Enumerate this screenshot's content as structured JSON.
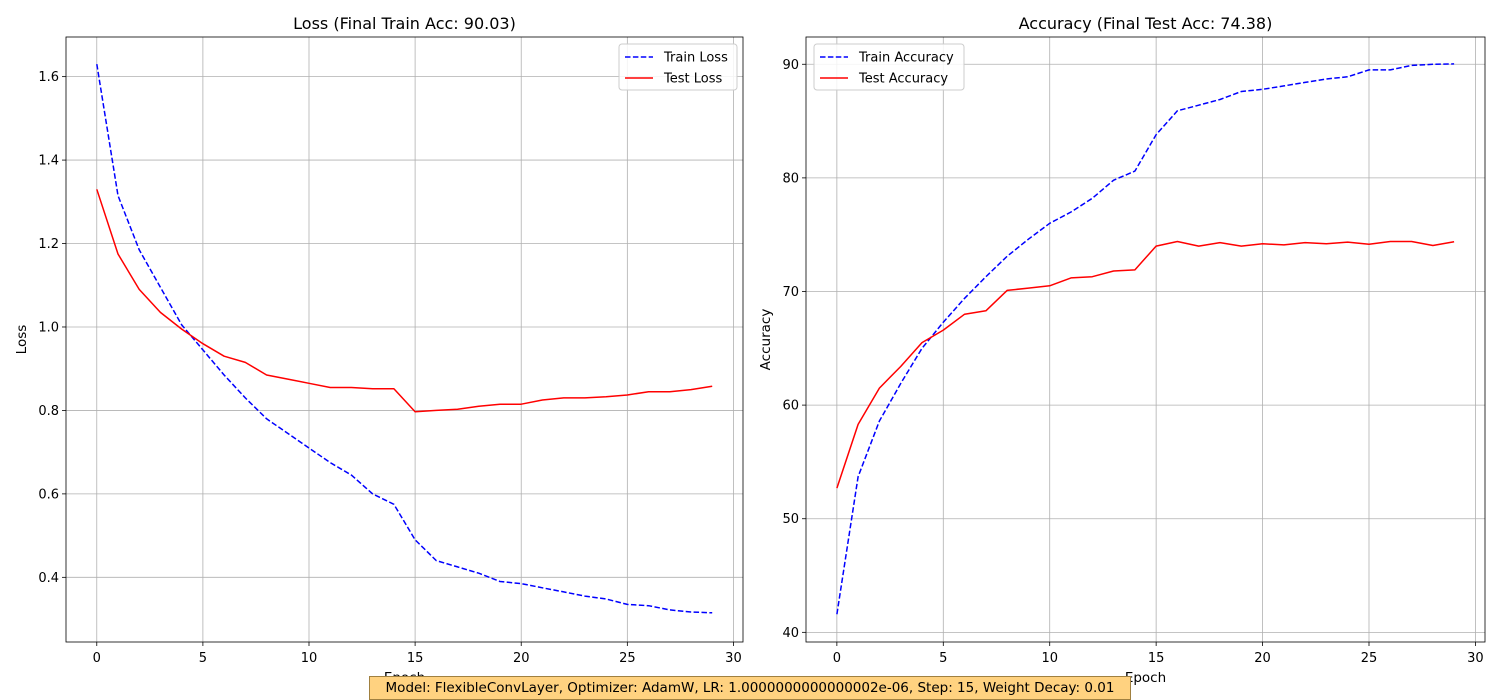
{
  "footer_text": "Model: FlexibleConvLayer, Optimizer: AdamW, LR: 1.0000000000000002e-06, Step: 15, Weight Decay: 0.01",
  "chart_data": [
    {
      "type": "line",
      "title": "Loss (Final Train Acc: 90.03)",
      "xlabel": "Epoch",
      "ylabel": "Loss",
      "xlim": [
        -1.45,
        30.45
      ],
      "ylim": [
        0.245,
        1.695
      ],
      "xticks": [
        0,
        5,
        10,
        15,
        20,
        25,
        30
      ],
      "yticks": [
        0.4,
        0.6,
        0.8,
        1.0,
        1.2,
        1.4,
        1.6
      ],
      "ytick_labels": [
        "0.4",
        "0.6",
        "0.8",
        "1.0",
        "1.2",
        "1.4",
        "1.6"
      ],
      "grid": true,
      "legend_position": "top-right",
      "x": [
        0,
        1,
        2,
        3,
        4,
        5,
        6,
        7,
        8,
        9,
        10,
        11,
        12,
        13,
        14,
        15,
        16,
        17,
        18,
        19,
        20,
        21,
        22,
        23,
        24,
        25,
        26,
        27,
        28,
        29
      ],
      "series": [
        {
          "name": "Train Loss",
          "color": "#0000ff",
          "style": "dashed",
          "values": [
            1.63,
            1.315,
            1.185,
            1.095,
            1.005,
            0.945,
            0.885,
            0.83,
            0.78,
            0.745,
            0.71,
            0.675,
            0.645,
            0.6,
            0.575,
            0.49,
            0.44,
            0.425,
            0.41,
            0.39,
            0.385,
            0.375,
            0.365,
            0.355,
            0.348,
            0.335,
            0.332,
            0.322,
            0.317,
            0.315
          ]
        },
        {
          "name": "Test Loss",
          "color": "#ff0000",
          "style": "solid",
          "values": [
            1.33,
            1.175,
            1.09,
            1.035,
            0.995,
            0.96,
            0.93,
            0.915,
            0.885,
            0.875,
            0.865,
            0.855,
            0.855,
            0.852,
            0.852,
            0.797,
            0.8,
            0.803,
            0.81,
            0.815,
            0.815,
            0.825,
            0.83,
            0.83,
            0.833,
            0.837,
            0.845,
            0.845,
            0.85,
            0.858
          ]
        }
      ]
    },
    {
      "type": "line",
      "title": "Accuracy (Final Test Acc: 74.38)",
      "xlabel": "Epoch",
      "ylabel": "Accuracy",
      "xlim": [
        -1.45,
        30.45
      ],
      "ylim": [
        39.15,
        92.4
      ],
      "xticks": [
        0,
        5,
        10,
        15,
        20,
        25,
        30
      ],
      "yticks": [
        40,
        50,
        60,
        70,
        80,
        90
      ],
      "ytick_labels": [
        "40",
        "50",
        "60",
        "70",
        "80",
        "90"
      ],
      "grid": true,
      "legend_position": "top-left",
      "x": [
        0,
        1,
        2,
        3,
        4,
        5,
        6,
        7,
        8,
        9,
        10,
        11,
        12,
        13,
        14,
        15,
        16,
        17,
        18,
        19,
        20,
        21,
        22,
        23,
        24,
        25,
        26,
        27,
        28,
        29
      ],
      "series": [
        {
          "name": "Train Accuracy",
          "color": "#0000ff",
          "style": "dashed",
          "values": [
            41.6,
            53.7,
            58.6,
            61.9,
            65.0,
            67.3,
            69.4,
            71.3,
            73.1,
            74.6,
            76.0,
            77.0,
            78.2,
            79.8,
            80.6,
            83.8,
            85.9,
            86.4,
            86.9,
            87.6,
            87.8,
            88.1,
            88.4,
            88.7,
            88.9,
            89.5,
            89.5,
            89.9,
            90.0,
            90.03
          ]
        },
        {
          "name": "Test Accuracy",
          "color": "#ff0000",
          "style": "solid",
          "values": [
            52.7,
            58.3,
            61.5,
            63.4,
            65.5,
            66.6,
            68.0,
            68.3,
            70.1,
            70.3,
            70.5,
            71.2,
            71.3,
            71.8,
            71.9,
            74.0,
            74.4,
            74.0,
            74.3,
            74.0,
            74.2,
            74.1,
            74.3,
            74.2,
            74.35,
            74.15,
            74.4,
            74.4,
            74.05,
            74.38
          ]
        }
      ]
    }
  ]
}
